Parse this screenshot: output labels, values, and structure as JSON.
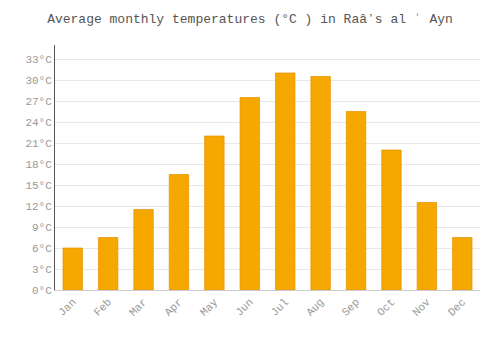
{
  "chart_data": {
    "type": "bar",
    "title": "Average monthly temperatures (°C ) in Raâʼs al ʿ Ayn",
    "categories": [
      "Jan",
      "Feb",
      "Mar",
      "Apr",
      "May",
      "Jun",
      "Jul",
      "Aug",
      "Sep",
      "Oct",
      "Nov",
      "Dec"
    ],
    "values": [
      6,
      7.5,
      11.5,
      16.5,
      22,
      27.5,
      31,
      30.5,
      25.5,
      20,
      12.5,
      7.5
    ],
    "color": "#F5A800",
    "ylim": [
      0,
      35
    ],
    "yticks": [
      {
        "value": 0,
        "label": "0°C"
      },
      {
        "value": 3,
        "label": "3°C"
      },
      {
        "value": 6,
        "label": "6°C"
      },
      {
        "value": 9,
        "label": "9°C"
      },
      {
        "value": 12,
        "label": "12°C"
      },
      {
        "value": 15,
        "label": "15°C"
      },
      {
        "value": 18,
        "label": "18°C"
      },
      {
        "value": 21,
        "label": "21°C"
      },
      {
        "value": 24,
        "label": "24°C"
      },
      {
        "value": 27,
        "label": "27°C"
      },
      {
        "value": 30,
        "label": "30°C"
      },
      {
        "value": 33,
        "label": "33°C"
      }
    ],
    "grid": true
  }
}
